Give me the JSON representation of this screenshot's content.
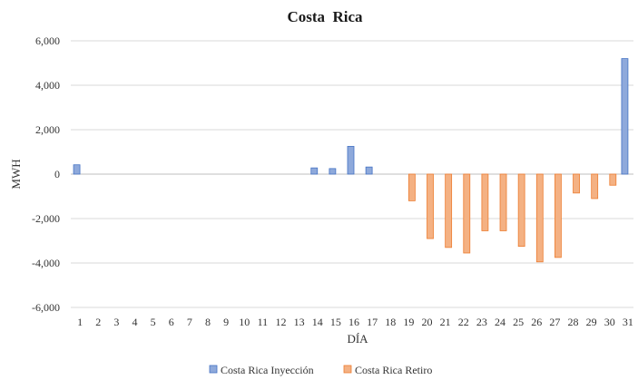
{
  "chart_data": {
    "type": "bar",
    "title": "Costa  Rica",
    "xlabel": "DÍA",
    "ylabel": "MWH",
    "ylim": [
      -6000,
      6000
    ],
    "yticks": [
      6000,
      4000,
      2000,
      0,
      -2000,
      -4000,
      -6000
    ],
    "ytick_labels": [
      "6,000",
      "4,000",
      "2,000",
      "0",
      "-2,000",
      "-4,000",
      "-6,000"
    ],
    "grid": true,
    "legend_position": "bottom",
    "categories": [
      "1",
      "2",
      "3",
      "4",
      "5",
      "6",
      "7",
      "8",
      "9",
      "10",
      "11",
      "12",
      "13",
      "14",
      "15",
      "16",
      "17",
      "18",
      "19",
      "20",
      "21",
      "22",
      "23",
      "24",
      "25",
      "26",
      "27",
      "28",
      "29",
      "30",
      "31"
    ],
    "series": [
      {
        "name": "Costa Rica Inyección",
        "color": "#8EA9DB",
        "stroke": "#4472C4",
        "values": [
          420,
          0,
          0,
          0,
          0,
          0,
          0,
          0,
          0,
          0,
          0,
          0,
          0,
          280,
          250,
          1250,
          320,
          0,
          0,
          0,
          0,
          0,
          0,
          0,
          0,
          0,
          0,
          0,
          0,
          0,
          5200
        ]
      },
      {
        "name": "Costa Rica Retiro",
        "color": "#F4B183",
        "stroke": "#ED7D31",
        "values": [
          0,
          0,
          0,
          0,
          0,
          0,
          0,
          0,
          0,
          0,
          0,
          0,
          0,
          0,
          0,
          0,
          0,
          0,
          -1200,
          -2900,
          -3300,
          -3550,
          -2550,
          -2550,
          -3250,
          -3950,
          -3750,
          -850,
          -1100,
          -500,
          0
        ]
      }
    ]
  }
}
